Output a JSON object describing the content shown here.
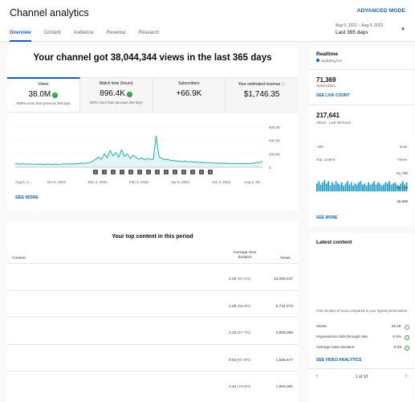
{
  "app": {
    "title": "Channel analytics",
    "advanced_mode": "ADVANCED MODE"
  },
  "tabs": [
    "Overview",
    "Content",
    "Audience",
    "Revenue",
    "Research"
  ],
  "date_range": {
    "range": "Aug 5, 2021 – Aug 4, 2022",
    "label": "Last 365 days"
  },
  "overview": {
    "headline": "Your channel got 38,044,344 views in the last 365 days",
    "metrics": [
      {
        "label": "Views",
        "value": "38.0M",
        "sub": ">999% more than previous 365 days",
        "trend": "up"
      },
      {
        "label": "Watch time (hours)",
        "value": "896.4K",
        "sub": "820% more than previous 365 days",
        "trend": "up"
      },
      {
        "label": "Subscribers",
        "value": "+66.9K",
        "sub": ""
      },
      {
        "label": "Your estimated revenue",
        "value": "$1,746.35",
        "sub": ""
      }
    ],
    "see_more": "SEE MORE"
  },
  "chart_data": {
    "type": "area",
    "x_ticks": [
      "Aug 5, 2...",
      "Oct 5, 2021",
      "Dec 4, 2021",
      "Feb 3, 2022",
      "Apr 5, 2022",
      "Jun 4, 2022",
      "Aug 4, 20..."
    ],
    "y_ticks": [
      "600.0K",
      "400.0K",
      "200.0K",
      "0"
    ],
    "ylim": [
      0,
      600000
    ],
    "values": [
      55000,
      50000,
      48000,
      52000,
      45000,
      50000,
      47000,
      44000,
      49000,
      46000,
      42000,
      47000,
      45000,
      43000,
      48000,
      44000,
      46000,
      50000,
      47000,
      52000,
      48000,
      55000,
      50000,
      60000,
      56000,
      65000,
      70000,
      90000,
      120000,
      150000,
      110000,
      200000,
      140000,
      250000,
      170000,
      220000,
      150000,
      260000,
      160000,
      200000,
      130000,
      180000,
      150000,
      120000,
      140000,
      110000,
      130000,
      120000,
      115000,
      470000,
      160000,
      130000,
      110000,
      120000,
      100000,
      105000,
      90000,
      95000,
      85000,
      90000,
      80000,
      88000,
      75000,
      80000,
      70000,
      72000,
      68000,
      70000,
      65000,
      63000,
      60000,
      62000,
      58000,
      60000,
      56000,
      58000,
      55000,
      57000,
      54000,
      56000,
      53000,
      54000,
      58000,
      60000,
      72000,
      68000,
      90000
    ],
    "markers": [
      "6",
      "2",
      "2",
      "2",
      "3",
      "2",
      "2",
      "3",
      "2",
      "2",
      "2",
      "2",
      "2",
      "5"
    ],
    "line_color": "#15a5b4"
  },
  "top_content": {
    "title": "Your top content in this period",
    "headers": {
      "content": "Content",
      "avd": "Average view duration",
      "views": "Views"
    },
    "rows": [
      {
        "duration": "1:22",
        "pct": "(67.4%)",
        "views": "13,063,437"
      },
      {
        "duration": "1:20",
        "pct": "(66.9%)",
        "views": "6,731,472"
      },
      {
        "duration": "1:33",
        "pct": "(67.7%)",
        "views": "2,605,099"
      },
      {
        "duration": "0:54",
        "pct": "(67.8%)",
        "views": "1,558,677"
      },
      {
        "duration": "1:44",
        "pct": "(78.9%)",
        "views": "1,063,381"
      }
    ]
  },
  "realtime": {
    "title": "Realtime",
    "live": "Updating live",
    "subscribers": "71,369",
    "subscribers_label": "Subscribers",
    "see_live_count": "SEE LIVE COUNT",
    "views": "217,641",
    "views_label": "Views · Last 48 hours",
    "axis_start": "-48h",
    "axis_end": "Now",
    "bars": [
      0.7,
      0.9,
      0.6,
      0.8,
      1.0,
      0.7,
      0.9,
      0.5,
      0.8,
      0.6,
      0.9,
      0.7,
      0.6,
      0.8,
      0.5,
      0.7,
      0.9,
      0.6,
      0.8,
      0.5,
      0.7,
      0.6,
      0.8,
      0.9,
      0.6,
      0.7,
      0.5,
      0.8,
      0.6,
      0.7,
      0.9,
      0.6,
      0.8,
      0.7,
      0.5,
      0.6,
      0.8,
      0.7,
      0.9,
      0.6,
      0.7,
      0.8,
      0.6,
      0.5,
      0.7,
      0.9,
      0.6,
      0.8
    ],
    "top_content_label": "Top content",
    "views_col": "Views",
    "top_values": [
      "51,780",
      "50,729",
      "48,898"
    ],
    "see_more": "SEE MORE"
  },
  "latest": {
    "title": "Latest content",
    "note": "First 45 days 6 hours compared to your typical performance:",
    "rows": [
      {
        "label": "Views",
        "value": "18.1K",
        "icon": "info"
      },
      {
        "label": "Impressions click-through rate",
        "value": "9.3%",
        "icon": "check"
      },
      {
        "label": "Average view duration",
        "value": "0:29",
        "icon": "check"
      }
    ],
    "see_video": "SEE VIDEO ANALYTICS",
    "pager": "1 of 10"
  }
}
